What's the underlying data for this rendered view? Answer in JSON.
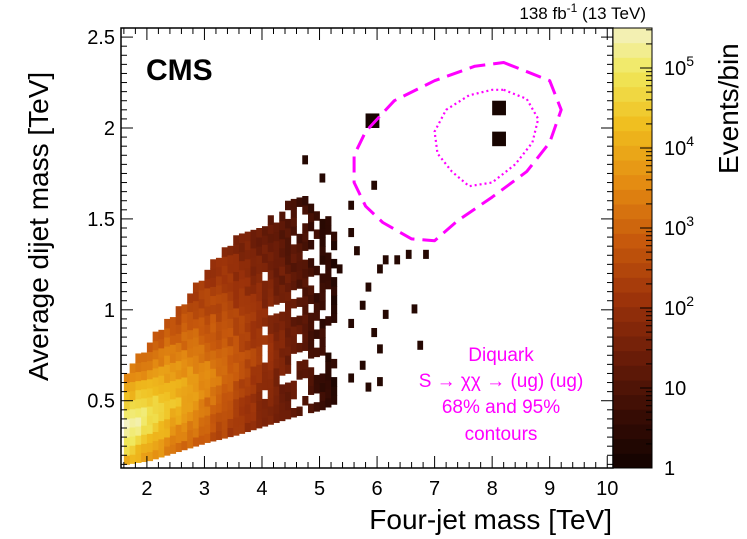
{
  "chart_data": {
    "type": "heatmap",
    "experiment": "CMS",
    "lumi_label": {
      "value": "138 fb",
      "exp": "-1",
      "energy": " (13 TeV)"
    },
    "xlabel": "Four-jet mass [TeV]",
    "ylabel": "Average dijet mass [TeV]",
    "zlabel": "Events/bin",
    "xlim": [
      1.55,
      10.1
    ],
    "ylim": [
      0.13,
      2.55
    ],
    "zlim_log10": [
      0,
      5.5
    ],
    "x_ticks": [
      2,
      3,
      4,
      5,
      6,
      7,
      8,
      9,
      10
    ],
    "y_ticks": [
      0.5,
      1,
      1.5,
      2,
      2.5
    ],
    "z_ticks": [
      {
        "value": 1,
        "label": "1"
      },
      {
        "value": 10,
        "label": "10"
      },
      {
        "value": 100,
        "label": "10",
        "exp": "2"
      },
      {
        "value": 1000,
        "label": "10",
        "exp": "3"
      },
      {
        "value": 10000,
        "label": "10",
        "exp": "4"
      },
      {
        "value": 100000,
        "label": "10",
        "exp": "5"
      }
    ],
    "bin_width_x": 0.1,
    "bin_width_y": 0.05,
    "bulk_fill": {
      "description": "Dense populated region: for each four-jet mass slice, dijet mass ranges from lower to upper edge",
      "x": [
        1.6,
        2.0,
        2.5,
        3.0,
        3.5,
        4.0,
        4.5,
        5.0,
        5.2
      ],
      "y_lower": [
        0.15,
        0.17,
        0.22,
        0.27,
        0.31,
        0.36,
        0.41,
        0.45,
        0.48
      ],
      "y_upper": [
        0.65,
        0.8,
        0.98,
        1.2,
        1.38,
        1.45,
        1.6,
        1.55,
        1.4
      ],
      "log10_peak": 5.2
    },
    "sparse_bins": [
      [
        5.5,
        1.55
      ],
      [
        5.5,
        1.4
      ],
      [
        5.6,
        1.3
      ],
      [
        5.3,
        1.2
      ],
      [
        5.8,
        1.1
      ],
      [
        6.0,
        1.2
      ],
      [
        6.1,
        1.25
      ],
      [
        5.7,
        1.0
      ],
      [
        6.3,
        1.25
      ],
      [
        6.5,
        1.28
      ],
      [
        6.1,
        0.95
      ],
      [
        5.5,
        0.9
      ],
      [
        5.9,
        0.85
      ],
      [
        6.6,
        0.98
      ],
      [
        6.0,
        0.76
      ],
      [
        5.7,
        0.67
      ],
      [
        5.5,
        0.6
      ],
      [
        5.8,
        0.55
      ],
      [
        6.0,
        0.58
      ],
      [
        6.7,
        0.78
      ],
      [
        6.8,
        1.28
      ],
      [
        5.9,
        1.66
      ],
      [
        5.0,
        1.7
      ],
      [
        4.7,
        1.8
      ]
    ],
    "signal_bins": [
      {
        "x": 5.8,
        "y": 2.0
      },
      {
        "x": 8.0,
        "y": 2.07
      },
      {
        "x": 8.0,
        "y": 1.9
      }
    ],
    "contours": [
      {
        "label": "95%",
        "style": "dashed",
        "x": [
          8.2,
          9.0,
          9.2,
          9.0,
          8.6,
          8.0,
          7.4,
          7.0,
          6.6,
          6.1,
          5.8,
          5.6,
          5.6,
          5.8,
          6.3,
          7.0,
          7.7,
          8.2
        ],
        "y": [
          2.36,
          2.26,
          2.1,
          1.92,
          1.76,
          1.62,
          1.49,
          1.38,
          1.39,
          1.48,
          1.57,
          1.7,
          1.85,
          1.98,
          2.15,
          2.26,
          2.34,
          2.36
        ]
      },
      {
        "label": "68%",
        "style": "dotted",
        "x": [
          8.2,
          8.6,
          8.8,
          8.7,
          8.4,
          8.0,
          7.6,
          7.3,
          7.05,
          7.0,
          7.2,
          7.6,
          8.0,
          8.2
        ],
        "y": [
          2.21,
          2.16,
          2.05,
          1.92,
          1.8,
          1.7,
          1.68,
          1.76,
          1.86,
          1.98,
          2.1,
          2.18,
          2.21,
          2.21
        ]
      }
    ],
    "annotation": [
      "Diquark",
      "S → χχ → (ug) (ug)",
      "68% and 95%",
      "contours"
    ],
    "contour_color": "#ff00ff"
  }
}
